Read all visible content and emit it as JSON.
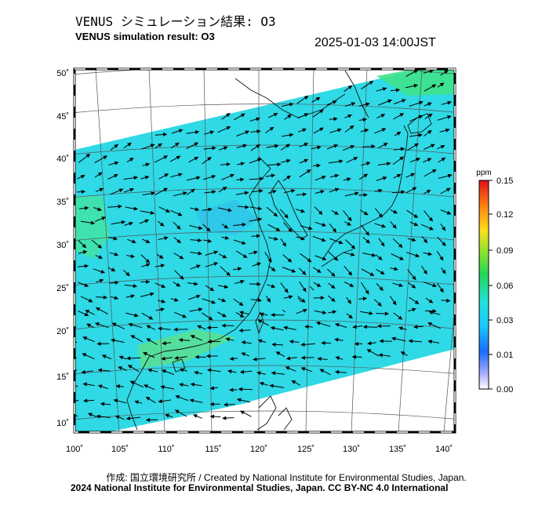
{
  "header": {
    "title_jp": "VENUS シミュレーション結果: O3",
    "title_en": "VENUS simulation result: O3",
    "timestamp": "2025-01-03 14:00JST"
  },
  "map": {
    "lon_ticks": [
      "100˚",
      "105˚",
      "110˚",
      "115˚",
      "120˚",
      "125˚",
      "130˚",
      "135˚",
      "140˚"
    ],
    "lat_ticks": [
      "50˚",
      "45˚",
      "40˚",
      "35˚",
      "30˚",
      "25˚",
      "20˚",
      "15˚",
      "10˚"
    ],
    "field_color": "#2fd9e6",
    "frame_style": "dashed black/white border"
  },
  "colorbar": {
    "unit": "ppm",
    "labels": [
      "0.15",
      "0.12",
      "0.09",
      "0.06",
      "0.03",
      "0.01",
      "0.00"
    ]
  },
  "footer": {
    "credit_jp_en": "作成: 国立環境研究所 / Created by National Institute for Environmental Studies, Japan.",
    "license": "2024 National Institute for Environmental Studies, Japan. CC BY-NC 4.0 International"
  }
}
